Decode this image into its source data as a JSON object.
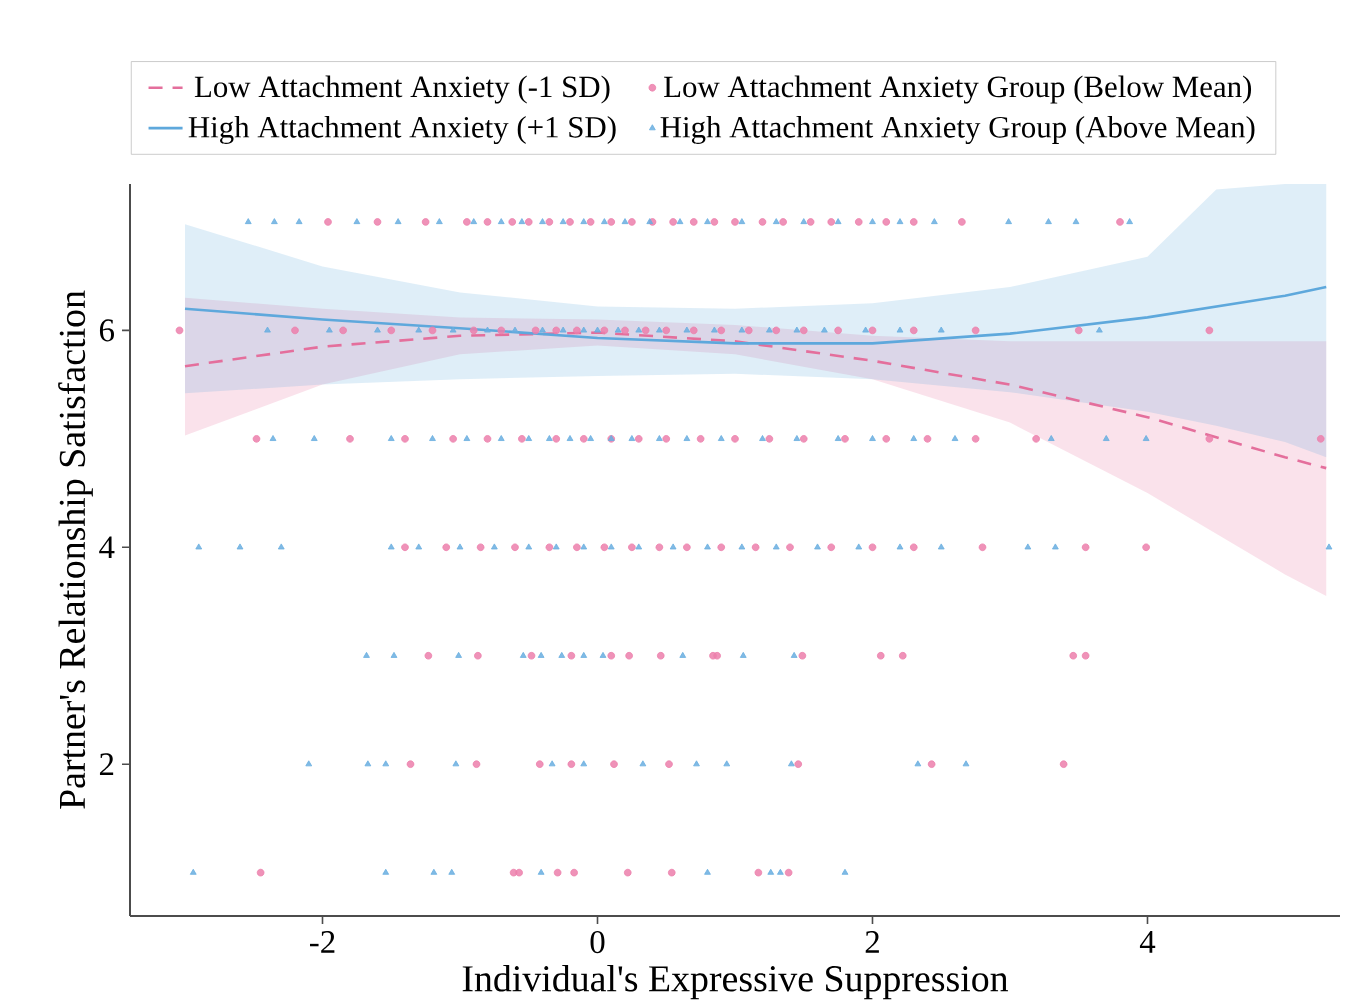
{
  "chart_data": {
    "type": "scatter",
    "xlabel": "Individual's Expressive Suppression",
    "ylabel": "Partner's Relationship Satisfaction",
    "xlim": [
      -3.4,
      5.4
    ],
    "ylim": [
      0.6,
      7.35
    ],
    "xticks": [
      -2,
      0,
      2,
      4
    ],
    "yticks": [
      2,
      4,
      6
    ],
    "grid": false,
    "legend": "top",
    "series": [
      {
        "name": "Low Attachment Anxiety (-1 SD)",
        "type": "line",
        "line_style": "dashed",
        "marker": "none",
        "color": "#e46f9c",
        "x": [
          -3,
          -2,
          -1,
          0,
          1,
          2,
          3,
          4,
          5,
          5.3
        ],
        "values": [
          5.67,
          5.85,
          5.95,
          5.98,
          5.9,
          5.72,
          5.5,
          5.2,
          4.83,
          4.73
        ],
        "lower": [
          5.03,
          5.5,
          5.78,
          5.86,
          5.78,
          5.55,
          5.15,
          4.5,
          3.75,
          3.55
        ],
        "upper": [
          6.3,
          6.2,
          6.12,
          6.1,
          6.05,
          5.95,
          5.9,
          5.9,
          5.9,
          5.9
        ]
      },
      {
        "name": "Low Attachment Anxiety Group (Below Mean)",
        "marker": "circle",
        "color": "#ec7fab",
        "x": [
          -1.96,
          -1.6,
          -1.25,
          -0.95,
          -0.8,
          -0.62,
          -0.5,
          -0.35,
          -0.2,
          -0.05,
          0.1,
          0.25,
          0.4,
          0.55,
          0.7,
          0.85,
          1.0,
          1.2,
          1.35,
          1.55,
          1.7,
          1.9,
          2.1,
          2.3,
          2.65,
          3.8,
          -3.04,
          -2.2,
          -1.85,
          -1.5,
          -1.2,
          -0.9,
          -0.7,
          -0.45,
          -0.3,
          -0.15,
          0.05,
          0.2,
          0.35,
          0.5,
          0.7,
          0.9,
          1.1,
          1.3,
          1.5,
          1.75,
          2.0,
          2.3,
          2.75,
          3.5,
          4.45,
          -2.48,
          -1.8,
          -1.4,
          -1.05,
          -0.8,
          -0.55,
          -0.3,
          -0.1,
          0.1,
          0.3,
          0.5,
          0.75,
          1.0,
          1.25,
          1.5,
          1.8,
          2.1,
          2.4,
          2.75,
          3.19,
          4.45,
          5.26,
          -1.4,
          -1.1,
          -0.85,
          -0.6,
          -0.35,
          -0.15,
          0.05,
          0.25,
          0.45,
          0.65,
          0.9,
          1.15,
          1.4,
          1.7,
          2.0,
          2.3,
          2.8,
          3.55,
          3.99,
          -1.23,
          -0.87,
          -0.48,
          -0.19,
          0.1,
          0.23,
          0.46,
          0.84,
          0.87,
          1.49,
          2.06,
          2.22,
          3.46,
          3.55,
          -1.36,
          -0.88,
          -0.42,
          -0.19,
          0.12,
          0.52,
          1.46,
          2.43,
          3.39,
          -2.45,
          -0.61,
          -0.57,
          -0.29,
          -0.17,
          0.22,
          0.54,
          1.17,
          1.39
        ],
        "values": [
          7,
          7,
          7,
          7,
          7,
          7,
          7,
          7,
          7,
          7,
          7,
          7,
          7,
          7,
          7,
          7,
          7,
          7,
          7,
          7,
          7,
          7,
          7,
          7,
          7,
          7,
          6,
          6,
          6,
          6,
          6,
          6,
          6,
          6,
          6,
          6,
          6,
          6,
          6,
          6,
          6,
          6,
          6,
          6,
          6,
          6,
          6,
          6,
          6,
          6,
          6,
          5,
          5,
          5,
          5,
          5,
          5,
          5,
          5,
          5,
          5,
          5,
          5,
          5,
          5,
          5,
          5,
          5,
          5,
          5,
          5,
          5,
          5,
          4,
          4,
          4,
          4,
          4,
          4,
          4,
          4,
          4,
          4,
          4,
          4,
          4,
          4,
          4,
          4,
          4,
          4,
          4,
          3,
          3,
          3,
          3,
          3,
          3,
          3,
          3,
          3,
          3,
          3,
          3,
          3,
          3,
          2,
          2,
          2,
          2,
          2,
          2,
          2,
          2,
          2,
          1,
          1,
          1,
          1,
          1,
          1,
          1,
          1,
          1
        ]
      },
      {
        "name": "High Attachment Anxiety (+1 SD)",
        "type": "line",
        "line_style": "solid",
        "marker": "none",
        "color": "#5ea8dc",
        "x": [
          -3,
          -2,
          -1,
          0,
          1,
          2,
          3,
          4,
          4.5,
          5,
          5.3
        ],
        "values": [
          6.2,
          6.1,
          6.02,
          5.93,
          5.88,
          5.88,
          5.97,
          6.12,
          6.22,
          6.32,
          6.4
        ],
        "lower": [
          5.42,
          5.5,
          5.55,
          5.58,
          5.6,
          5.55,
          5.43,
          5.25,
          5.12,
          4.97,
          4.83
        ],
        "upper": [
          6.98,
          6.59,
          6.35,
          6.22,
          6.2,
          6.25,
          6.4,
          6.68,
          7.3,
          7.35,
          7.35
        ]
      },
      {
        "name": "High Attachment Anxiety Group (Above Mean)",
        "marker": "triangle",
        "color": "#6aaee0",
        "x": [
          -2.54,
          -2.35,
          -2.17,
          -1.75,
          -1.45,
          -1.15,
          -0.9,
          -0.7,
          -0.55,
          -0.4,
          -0.25,
          -0.1,
          0.05,
          0.2,
          0.38,
          0.6,
          0.8,
          1.05,
          1.3,
          1.5,
          1.75,
          2.0,
          2.2,
          2.45,
          2.99,
          3.28,
          3.48,
          3.87,
          -2.4,
          -1.95,
          -1.6,
          -1.3,
          -1.05,
          -0.8,
          -0.6,
          -0.4,
          -0.25,
          -0.1,
          0.0,
          0.15,
          0.3,
          0.45,
          0.65,
          0.85,
          1.05,
          1.25,
          1.45,
          1.65,
          1.95,
          2.2,
          2.5,
          3.65,
          -2.36,
          -2.06,
          -1.5,
          -1.2,
          -0.95,
          -0.7,
          -0.5,
          -0.35,
          -0.2,
          -0.05,
          0.1,
          0.25,
          0.45,
          0.65,
          0.9,
          1.2,
          1.45,
          1.75,
          2.0,
          2.3,
          2.6,
          3.3,
          3.7,
          3.99,
          -2.9,
          -2.6,
          -2.3,
          -1.5,
          -1.3,
          -1.0,
          -0.75,
          -0.5,
          -0.3,
          -0.1,
          0.1,
          0.3,
          0.55,
          0.8,
          1.05,
          1.3,
          1.6,
          1.9,
          2.2,
          2.5,
          3.13,
          3.33,
          5.32,
          -1.68,
          -1.48,
          -1.01,
          -0.54,
          -0.41,
          -0.26,
          -0.1,
          0.04,
          0.62,
          1.06,
          1.43,
          -2.1,
          -1.67,
          -1.54,
          -1.03,
          -0.33,
          -0.1,
          0.33,
          0.72,
          0.94,
          1.41,
          2.33,
          2.68,
          -2.94,
          -1.54,
          -1.19,
          -1.06,
          -0.41,
          0.8,
          1.26,
          1.33,
          1.8
        ],
        "values": [
          7,
          7,
          7,
          7,
          7,
          7,
          7,
          7,
          7,
          7,
          7,
          7,
          7,
          7,
          7,
          7,
          7,
          7,
          7,
          7,
          7,
          7,
          7,
          7,
          7,
          7,
          7,
          7,
          6,
          6,
          6,
          6,
          6,
          6,
          6,
          6,
          6,
          6,
          6,
          6,
          6,
          6,
          6,
          6,
          6,
          6,
          6,
          6,
          6,
          6,
          6,
          6,
          5,
          5,
          5,
          5,
          5,
          5,
          5,
          5,
          5,
          5,
          5,
          5,
          5,
          5,
          5,
          5,
          5,
          5,
          5,
          5,
          5,
          5,
          5,
          5,
          4,
          4,
          4,
          4,
          4,
          4,
          4,
          4,
          4,
          4,
          4,
          4,
          4,
          4,
          4,
          4,
          4,
          4,
          4,
          4,
          4,
          4,
          4,
          3,
          3,
          3,
          3,
          3,
          3,
          3,
          3,
          3,
          3,
          3,
          2,
          2,
          2,
          2,
          2,
          2,
          2,
          2,
          2,
          2,
          2,
          2,
          1,
          1,
          1,
          1,
          1,
          1,
          1,
          1,
          1
        ]
      }
    ]
  }
}
